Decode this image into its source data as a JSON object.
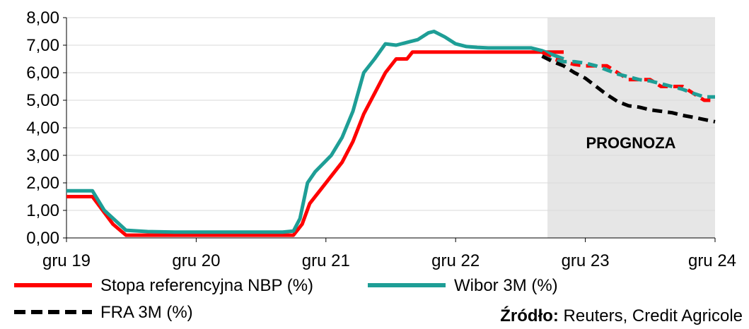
{
  "chart_data": {
    "type": "line",
    "title": "",
    "xlabel": "",
    "ylabel": "",
    "ylim": [
      0,
      8
    ],
    "y_ticks": [
      "0,00",
      "1,00",
      "2,00",
      "3,00",
      "4,00",
      "5,00",
      "6,00",
      "7,00",
      "8,00"
    ],
    "y_tick_values": [
      0,
      1,
      2,
      3,
      4,
      5,
      6,
      7,
      8
    ],
    "x_ticks": [
      "gru 19",
      "gru 20",
      "gru 21",
      "gru 22",
      "gru 23",
      "gru 24"
    ],
    "x_tick_months": [
      0,
      12,
      24,
      36,
      48,
      60
    ],
    "xlim_months": [
      0,
      60
    ],
    "forecast_from_month": 44.5,
    "forecast_label": "PROGNOZA",
    "grid": "horizontal",
    "legend_position": "bottom",
    "source_label": "Źródło:",
    "source_text": " Reuters, Credit Agricole",
    "series": [
      {
        "name": "Stopa referencyjna NBP (%)",
        "color": "#ff0000",
        "style": "solid",
        "x": [
          0,
          2.4,
          4.3,
          5.5,
          10,
          20,
          21,
          21.8,
          22.5,
          23.5,
          24.5,
          25.5,
          26.5,
          27.5,
          28.5,
          29.5,
          30.5,
          31.5,
          32,
          33,
          34,
          35,
          36,
          37,
          38,
          39,
          40,
          41,
          42,
          43,
          44,
          45,
          46
        ],
        "y": [
          1.5,
          1.5,
          0.5,
          0.1,
          0.1,
          0.1,
          0.1,
          0.5,
          1.25,
          1.75,
          2.25,
          2.75,
          3.5,
          4.5,
          5.25,
          6.0,
          6.5,
          6.5,
          6.75,
          6.75,
          6.75,
          6.75,
          6.75,
          6.75,
          6.75,
          6.75,
          6.75,
          6.75,
          6.75,
          6.75,
          6.75,
          6.75,
          6.75
        ]
      },
      {
        "name": "Wibor 3M (%)",
        "color": "#1e9e96",
        "style": "solid",
        "x": [
          0,
          2.4,
          3.5,
          5.5,
          7.5,
          10,
          20,
          21,
          21.6,
          22.3,
          23,
          24.5,
          25.5,
          26.5,
          27.5,
          28.5,
          29.5,
          30.5,
          31.5,
          32.5,
          33.5,
          34,
          35,
          36,
          37,
          38,
          39,
          40,
          41,
          42,
          43,
          44,
          45,
          46
        ],
        "y": [
          1.71,
          1.71,
          1.0,
          0.28,
          0.23,
          0.21,
          0.21,
          0.25,
          0.7,
          2.0,
          2.4,
          3.0,
          3.65,
          4.6,
          6.0,
          6.5,
          7.05,
          7.0,
          7.1,
          7.2,
          7.45,
          7.5,
          7.3,
          7.05,
          6.95,
          6.92,
          6.9,
          6.9,
          6.9,
          6.9,
          6.9,
          6.8,
          6.65,
          6.5
        ]
      },
      {
        "name": "Stopa referencyjna NBP (%) prognoza",
        "color": "#ff0000",
        "style": "dashed",
        "x": [
          44,
          45,
          46,
          47,
          48,
          49,
          50,
          51,
          52,
          53,
          54,
          55,
          56,
          57,
          58,
          59,
          60
        ],
        "y": [
          6.75,
          6.5,
          6.4,
          6.3,
          6.25,
          6.25,
          6.25,
          6.0,
          5.75,
          5.75,
          5.75,
          5.5,
          5.5,
          5.5,
          5.25,
          5.0,
          5.0
        ]
      },
      {
        "name": "Wibor 3M (%) prognoza",
        "color": "#1e9e96",
        "style": "dashed",
        "x": [
          44,
          45,
          46,
          47,
          48,
          49,
          50,
          51,
          52,
          53,
          54,
          55,
          56,
          57,
          58,
          59,
          60
        ],
        "y": [
          6.6,
          6.45,
          6.4,
          6.4,
          6.35,
          6.25,
          6.1,
          5.95,
          5.85,
          5.75,
          5.7,
          5.6,
          5.5,
          5.4,
          5.25,
          5.12,
          5.12
        ]
      },
      {
        "name": "FRA 3M (%)",
        "color": "#000000",
        "style": "dashed",
        "x": [
          44,
          45,
          46,
          47,
          48,
          49,
          50,
          51,
          52,
          53,
          54,
          55,
          56,
          57,
          58,
          59,
          60
        ],
        "y": [
          6.6,
          6.4,
          6.25,
          6.0,
          5.8,
          5.5,
          5.2,
          4.95,
          4.8,
          4.75,
          4.65,
          4.6,
          4.55,
          4.45,
          4.38,
          4.3,
          4.22
        ]
      }
    ],
    "legend": [
      {
        "label": "Stopa referencyjna NBP (%)",
        "color": "#ff0000",
        "style": "solid"
      },
      {
        "label": "Wibor 3M (%)",
        "color": "#1e9e96",
        "style": "solid"
      },
      {
        "label": "FRA 3M (%)",
        "color": "#000000",
        "style": "dashed"
      }
    ]
  }
}
